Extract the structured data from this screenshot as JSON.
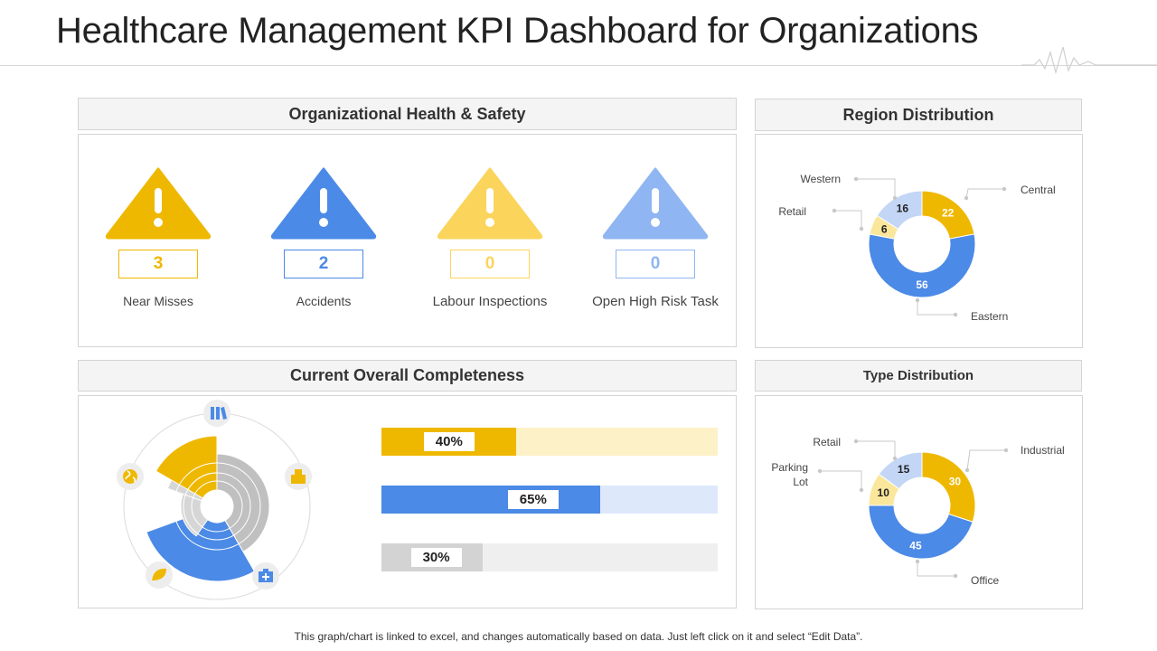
{
  "title": "Healthcare Management KPI Dashboard for Organizations",
  "footer": "This graph/chart is linked to excel, and changes automatically based on data. Just left click on it and select “Edit Data”.",
  "panels": {
    "health_safety": "Organizational Health & Safety",
    "region": "Region Distribution",
    "completeness": "Current Overall Completeness",
    "type": "Type Distribution"
  },
  "kpis": [
    {
      "label": "Near Misses",
      "value": "3",
      "color": "#efb800",
      "border": "#efb800"
    },
    {
      "label": "Accidents",
      "value": "2",
      "color": "#4b8ae6",
      "border": "#4b8ae6"
    },
    {
      "label": "Labour Inspections",
      "value": "0",
      "color": "#fbd45c",
      "border": "#fbd45c"
    },
    {
      "label": "Open High Risk Task",
      "value": "0",
      "color": "#8fb6f2",
      "border": "#8fb6f2"
    }
  ],
  "colors": {
    "yellow": "#efb800",
    "blue": "#4b8ae6",
    "light_yellow": "#fbe79b",
    "light_blue": "#c3d6f6",
    "gray": "#c0c0c0"
  },
  "chart_data": [
    {
      "type": "pie",
      "title": "Region Distribution",
      "categories": [
        "Central",
        "Eastern",
        "Retail",
        "Western"
      ],
      "values": [
        22,
        56,
        6,
        16
      ],
      "colors": [
        "#efb800",
        "#4b8ae6",
        "#fbe79b",
        "#c3d6f6"
      ]
    },
    {
      "type": "pie",
      "title": "Type Distribution",
      "categories": [
        "Industrial",
        "Office",
        "Parking Lot",
        "Retail"
      ],
      "values": [
        30,
        45,
        10,
        15
      ],
      "colors": [
        "#efb800",
        "#4b8ae6",
        "#fbe79b",
        "#c3d6f6"
      ]
    },
    {
      "type": "bar",
      "title": "Current Overall Completeness",
      "categories": [
        "",
        "",
        ""
      ],
      "values": [
        40,
        65,
        30
      ],
      "labels": [
        "40%",
        "65%",
        "30%"
      ],
      "fill_colors": [
        "#efb800",
        "#4b8ae6",
        "#d3d3d3"
      ],
      "track_colors": [
        "#fdf1c8",
        "#dde8fb",
        "#efefef"
      ],
      "ylim": [
        0,
        100
      ]
    }
  ],
  "radial_icons": [
    "books-icon",
    "building-icon",
    "first-aid-kit-icon",
    "leaf-icon",
    "globe-icon"
  ]
}
